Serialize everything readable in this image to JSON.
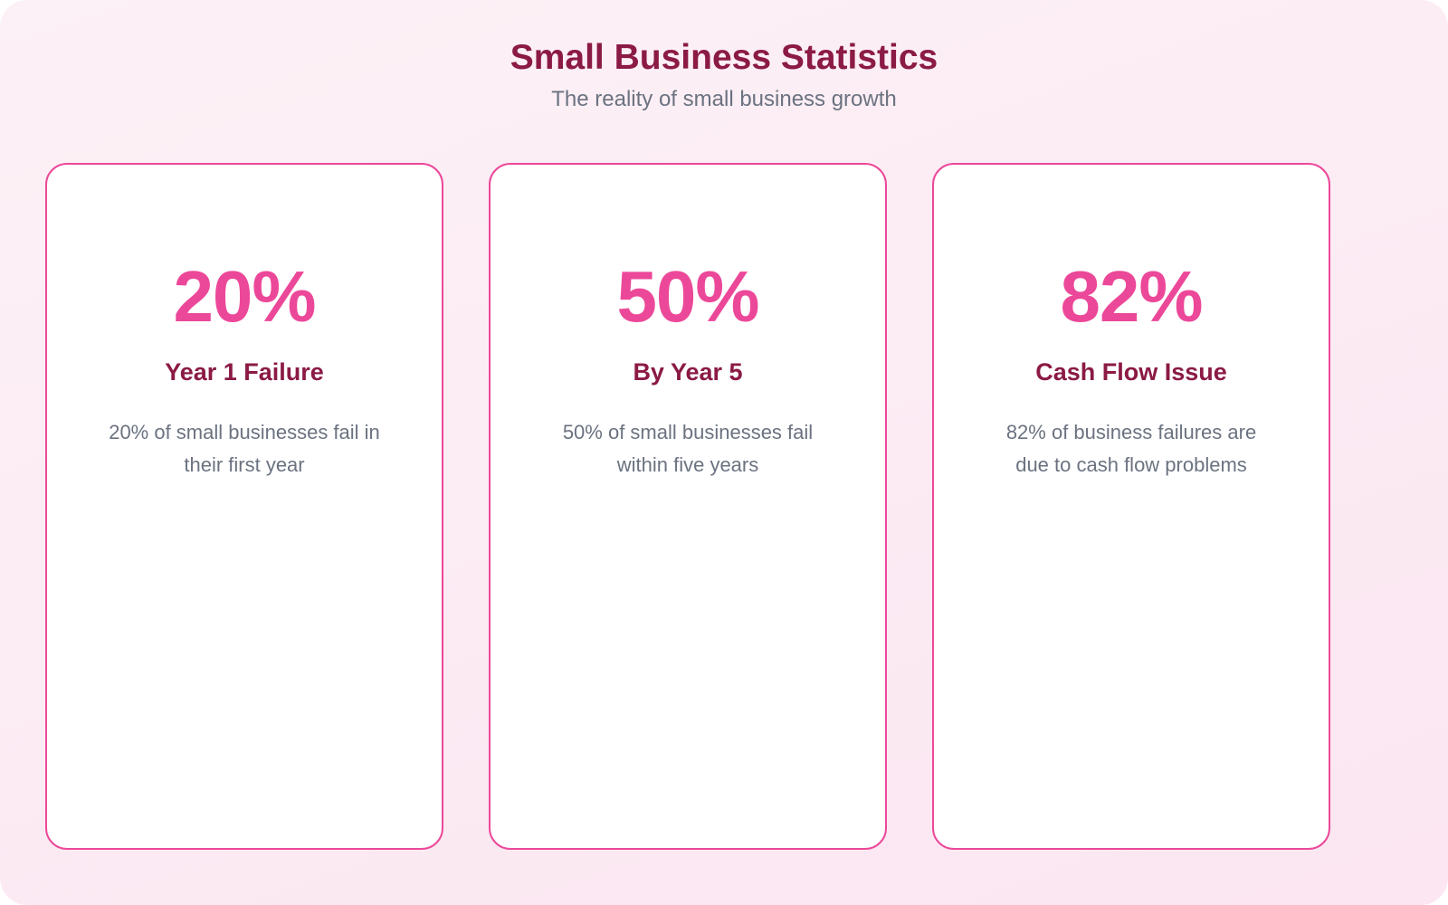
{
  "header": {
    "title": "Small Business Statistics",
    "subtitle": "The reality of small business growth"
  },
  "colors": {
    "accent": "#ec4899",
    "heading": "#8b1a45",
    "muted": "#6b7280"
  },
  "cards": [
    {
      "value": "20%",
      "label": "Year 1 Failure",
      "description": "20% of small businesses fail in their first year"
    },
    {
      "value": "50%",
      "label": "By Year 5",
      "description": "50% of small businesses fail within five years"
    },
    {
      "value": "82%",
      "label": "Cash Flow Issue",
      "description": "82% of business failures are due to cash flow problems"
    }
  ]
}
